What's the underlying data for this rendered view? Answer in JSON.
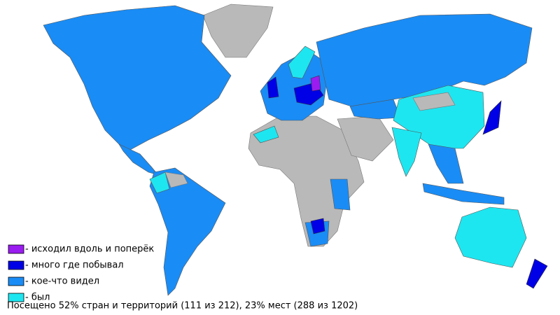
{
  "legend": [
    {
      "label": "- исходил вдоль и поперёк",
      "color": "#9a1cf0"
    },
    {
      "label": "- много где побывал",
      "color": "#0000e6"
    },
    {
      "label": "- кое-что видел",
      "color": "#1a8cf5"
    },
    {
      "label": "- был",
      "color": "#1ee6f0"
    }
  ],
  "summary": "Посещено 52% стран и территорий (111 из 212), 23% мест (288 из 1202)"
}
